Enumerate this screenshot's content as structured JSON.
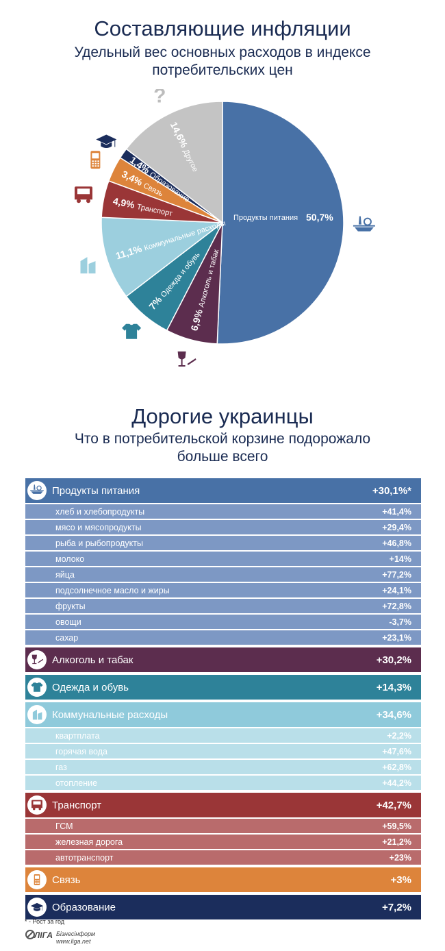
{
  "header": {
    "title": "Составляющие инфляции",
    "subtitle_line1": "Удельный вес основных расходов в индексе",
    "subtitle_line2": "потребительских цен"
  },
  "chart_data": {
    "type": "pie",
    "slices": [
      {
        "label": "Продукты питания",
        "value": 50.7,
        "value_label": "50,7%",
        "color": "#4871a6",
        "icon": "food-plate-icon"
      },
      {
        "label": "Алкоголь и табак",
        "value": 6.9,
        "value_label": "6,9%",
        "color": "#5c2d4e",
        "icon": "wine-cigarette-icon"
      },
      {
        "label": "Одежда и обувь",
        "value": 7,
        "value_label": "7%",
        "color": "#2e8299",
        "icon": "tshirt-shoe-icon"
      },
      {
        "label": "Коммунальные расходы",
        "value": 11.1,
        "value_label": "11,1%",
        "color": "#9ccfde",
        "icon": "building-icon"
      },
      {
        "label": "Транспорт",
        "value": 4.9,
        "value_label": "4,9%",
        "color": "#9a3637",
        "icon": "bus-icon"
      },
      {
        "label": "Связь",
        "value": 3.4,
        "value_label": "3,4%",
        "color": "#dd843b",
        "icon": "mobile-phone-icon"
      },
      {
        "label": "Образование",
        "value": 1.4,
        "value_label": "1,4%",
        "color": "#1b2d5c",
        "icon": "graduation-cap-icon"
      },
      {
        "label": "Другое",
        "value": 14.6,
        "value_label": "14,6%",
        "color": "#c4c4c4",
        "icon": "question-mark-icon"
      }
    ]
  },
  "section2": {
    "title": "Дорогие украинцы",
    "subtitle_line1": "Что в потребительской корзине подорожало",
    "subtitle_line2": "больше всего"
  },
  "table": [
    {
      "kind": "cat",
      "label": "Продукты питания",
      "value": "+30,1%*",
      "color": "#4871a6",
      "icon": "food-plate-icon"
    },
    {
      "kind": "sub",
      "label": "хлеб и хлебопродукты",
      "value": "+41,4%",
      "color": "#7d98c4"
    },
    {
      "kind": "sub",
      "label": "мясо и мясопродукты",
      "value": "+29,4%",
      "color": "#7d98c4"
    },
    {
      "kind": "sub",
      "label": "рыба и рыбопродукты",
      "value": "+46,8%",
      "color": "#7d98c4"
    },
    {
      "kind": "sub",
      "label": "молоко",
      "value": "+14%",
      "color": "#7d98c4"
    },
    {
      "kind": "sub",
      "label": "яйца",
      "value": "+77,2%",
      "color": "#7d98c4"
    },
    {
      "kind": "sub",
      "label": "подсолнечное масло и жиры",
      "value": "+24,1%",
      "color": "#7d98c4"
    },
    {
      "kind": "sub",
      "label": "фрукты",
      "value": "+72,8%",
      "color": "#7d98c4"
    },
    {
      "kind": "sub",
      "label": "овощи",
      "value": "-3,7%",
      "color": "#7d98c4"
    },
    {
      "kind": "sub",
      "label": "сахар",
      "value": "+23,1%",
      "color": "#7d98c4"
    },
    {
      "kind": "cat",
      "label": "Алкоголь и табак",
      "value": "+30,2%",
      "color": "#5c2d4e",
      "icon": "wine-cigarette-icon"
    },
    {
      "kind": "cat",
      "label": "Одежда и обувь",
      "value": "+14,3%",
      "color": "#2e8299",
      "icon": "tshirt-icon"
    },
    {
      "kind": "cat",
      "label": "Коммунальные расходы",
      "value": "+34,6%",
      "color": "#8fcadb",
      "icon": "building-icon"
    },
    {
      "kind": "sub",
      "label": "квартплата",
      "value": "+2,2%",
      "color": "#b9dfe9"
    },
    {
      "kind": "sub",
      "label": "горячая вода",
      "value": "+47,6%",
      "color": "#b9dfe9"
    },
    {
      "kind": "sub",
      "label": "газ",
      "value": "+62,8%",
      "color": "#b9dfe9"
    },
    {
      "kind": "sub",
      "label": "отопление",
      "value": "+44,2%",
      "color": "#b9dfe9"
    },
    {
      "kind": "cat",
      "label": "Транспорт",
      "value": "+42,7%",
      "color": "#9a3637",
      "icon": "bus-icon"
    },
    {
      "kind": "sub",
      "label": "ГСМ",
      "value": "+59,5%",
      "color": "#b96b6c"
    },
    {
      "kind": "sub",
      "label": "железная дорога",
      "value": "+21,2%",
      "color": "#b96b6c"
    },
    {
      "kind": "sub",
      "label": "автотранспорт",
      "value": "+23%",
      "color": "#b96b6c"
    },
    {
      "kind": "cat",
      "label": "Связь",
      "value": "+3%",
      "color": "#dd843b",
      "icon": "mobile-phone-icon"
    },
    {
      "kind": "cat",
      "label": "Образование",
      "value": "+7,2%",
      "color": "#1b2d5c",
      "icon": "graduation-cap-icon"
    }
  ],
  "footnote": "* - Рост за год",
  "logo": {
    "brand": "ЛІГА",
    "line1": "Бізнесінформ",
    "line2": "www.liga.net"
  }
}
